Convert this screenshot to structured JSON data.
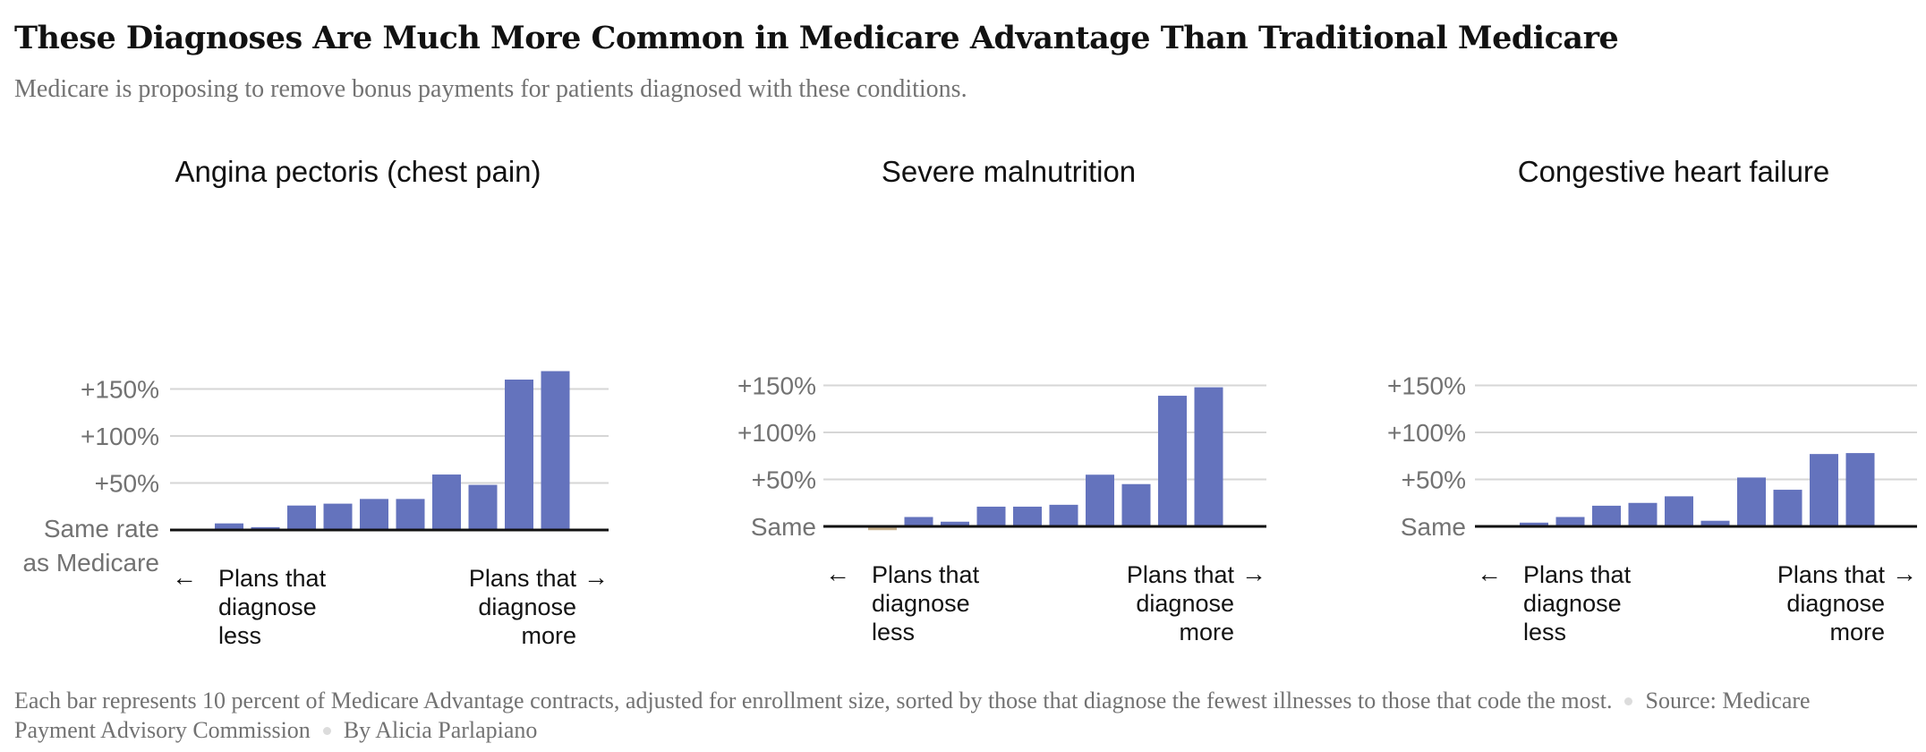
{
  "header": {
    "title": "These Diagnoses Are Much More Common in Medicare Advantage Than Traditional Medicare",
    "subtitle": "Medicare is proposing to remove bonus payments for patients diagnosed with these conditions."
  },
  "footer": {
    "note": "Each bar represents 10 percent of Medicare Advantage contracts, adjusted for enrollment size, sorted by those that diagnose the fewest illnesses to those that code the most.",
    "source": "Source: Medicare Payment Advisory Commission",
    "byline": "By Alicia Parlapiano"
  },
  "colors": {
    "positive_bar": "#6473bd",
    "negative_bar": "#c8b28f",
    "gridline": "#d6d6d6",
    "baseline": "#121212"
  },
  "chart_data": [
    {
      "type": "bar",
      "title": "Angina pectoris (chest pain)",
      "categories": [
        "1",
        "2",
        "3",
        "4",
        "5",
        "6",
        "7",
        "8",
        "9",
        "10"
      ],
      "values": [
        7,
        3,
        26,
        28,
        33,
        33,
        59,
        48,
        160,
        169
      ],
      "ylim": [
        0,
        170
      ],
      "yticks": [
        0,
        50,
        100,
        150
      ],
      "ytick_labels": [
        "Same rate\nas Medicare",
        "+50%",
        "+100%",
        "+150%"
      ],
      "x_left_label": "Plans that\ndiagnose\nless",
      "x_right_label": "Plans that\ndiagnose\nmore",
      "grid": true
    },
    {
      "type": "bar",
      "title": "Severe malnutrition",
      "categories": [
        "1",
        "2",
        "3",
        "4",
        "5",
        "6",
        "7",
        "8",
        "9",
        "10"
      ],
      "values": [
        -4,
        10,
        5,
        21,
        21,
        23,
        55,
        45,
        139,
        148
      ],
      "ylim": [
        -5,
        150
      ],
      "yticks": [
        0,
        50,
        100,
        150
      ],
      "ytick_labels": [
        "Same",
        "+50%",
        "+100%",
        "+150%"
      ],
      "x_left_label": "Plans that\ndiagnose\nless",
      "x_right_label": "Plans that\ndiagnose\nmore",
      "grid": true
    },
    {
      "type": "bar",
      "title": "Congestive heart failure",
      "categories": [
        "1",
        "2",
        "3",
        "4",
        "5",
        "6",
        "7",
        "8",
        "9",
        "10"
      ],
      "values": [
        4,
        10,
        22,
        25,
        32,
        6,
        52,
        39,
        77,
        78
      ],
      "ylim": [
        0,
        150
      ],
      "yticks": [
        0,
        50,
        100,
        150
      ],
      "ytick_labels": [
        "Same",
        "+50%",
        "+100%",
        "+150%"
      ],
      "x_left_label": "Plans that\ndiagnose\nless",
      "x_right_label": "Plans that\ndiagnose\nmore",
      "grid": true
    }
  ]
}
